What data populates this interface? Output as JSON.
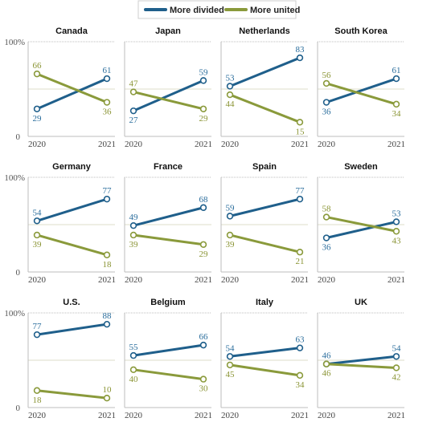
{
  "legend": {
    "divided_label": "More divided",
    "united_label": "More united"
  },
  "colors": {
    "divided": "#1f5f8b",
    "united": "#8a9a3b",
    "divided_text": "#2a6d9c",
    "united_text": "#8a9434",
    "midline": "#dcdcc8",
    "axis": "#bdbdbd",
    "panel_bg": "#ffffff"
  },
  "axis": {
    "y_top_label": "100%",
    "y_bottom_label": "0"
  },
  "chart_data": {
    "type": "line",
    "x": [
      "2020",
      "2021"
    ],
    "ylim": [
      0,
      100
    ],
    "series_names": [
      "More divided",
      "More united"
    ],
    "panels": [
      {
        "title": "Canada",
        "divided": [
          29,
          61
        ],
        "united": [
          66,
          36
        ]
      },
      {
        "title": "Japan",
        "divided": [
          27,
          59
        ],
        "united": [
          47,
          29
        ]
      },
      {
        "title": "Netherlands",
        "divided": [
          53,
          83
        ],
        "united": [
          44,
          15
        ]
      },
      {
        "title": "South Korea",
        "divided": [
          36,
          61
        ],
        "united": [
          56,
          34
        ]
      },
      {
        "title": "Germany",
        "divided": [
          54,
          77
        ],
        "united": [
          39,
          18
        ]
      },
      {
        "title": "France",
        "divided": [
          49,
          68
        ],
        "united": [
          39,
          29
        ]
      },
      {
        "title": "Spain",
        "divided": [
          59,
          77
        ],
        "united": [
          39,
          21
        ]
      },
      {
        "title": "Sweden",
        "divided": [
          36,
          53
        ],
        "united": [
          58,
          43
        ]
      },
      {
        "title": "U.S.",
        "divided": [
          77,
          88
        ],
        "united": [
          18,
          10
        ]
      },
      {
        "title": "Belgium",
        "divided": [
          55,
          66
        ],
        "united": [
          40,
          30
        ]
      },
      {
        "title": "Italy",
        "divided": [
          54,
          63
        ],
        "united": [
          45,
          34
        ]
      },
      {
        "title": "UK",
        "divided": [
          46,
          54
        ],
        "united": [
          46,
          42
        ]
      }
    ]
  }
}
